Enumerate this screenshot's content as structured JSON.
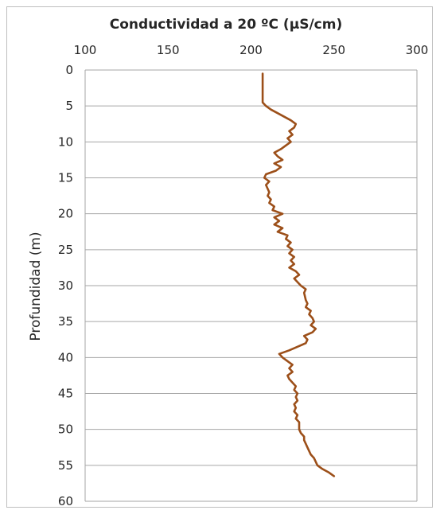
{
  "chart_data": {
    "type": "line",
    "title": "Conductividad  a  20 ºC (µS/cm)",
    "xlabel": "",
    "ylabel": "Profundidad (m)",
    "xlim": [
      100,
      300
    ],
    "ylim": [
      0,
      60
    ],
    "y_inverted": true,
    "x_axis_position": "top",
    "x_ticks": [
      "100",
      "150",
      "200",
      "250",
      "300"
    ],
    "y_ticks": [
      "0",
      "5",
      "10",
      "15",
      "20",
      "25",
      "30",
      "35",
      "40",
      "45",
      "50",
      "55",
      "60"
    ],
    "grid": "horizontal",
    "legend": "none",
    "colors": {
      "line": "#9C4F19",
      "grid": "#a6a6a6",
      "border": "#bfbfbf",
      "text": "#262626"
    },
    "series": [
      {
        "points": [
          [
            207,
            0.5
          ],
          [
            207,
            1.5
          ],
          [
            207,
            3
          ],
          [
            207,
            4.5
          ],
          [
            209,
            5
          ],
          [
            212,
            5.5
          ],
          [
            216,
            6
          ],
          [
            220,
            6.5
          ],
          [
            224,
            7
          ],
          [
            227,
            7.5
          ],
          [
            226,
            8
          ],
          [
            223,
            8.5
          ],
          [
            225,
            9
          ],
          [
            222,
            9.5
          ],
          [
            224,
            10
          ],
          [
            221,
            10.5
          ],
          [
            218,
            11
          ],
          [
            214,
            11.5
          ],
          [
            216,
            12
          ],
          [
            219,
            12.5
          ],
          [
            214,
            13
          ],
          [
            218,
            13.5
          ],
          [
            215,
            14
          ],
          [
            209,
            14.5
          ],
          [
            208,
            15
          ],
          [
            211,
            15.5
          ],
          [
            209,
            16
          ],
          [
            211,
            17
          ],
          [
            210,
            17.5
          ],
          [
            212,
            18
          ],
          [
            211,
            18.5
          ],
          [
            214,
            19
          ],
          [
            213,
            19.5
          ],
          [
            219,
            20
          ],
          [
            214,
            20.5
          ],
          [
            217,
            21
          ],
          [
            214,
            21.5
          ],
          [
            219,
            22
          ],
          [
            216,
            22.5
          ],
          [
            222,
            23
          ],
          [
            221,
            23.5
          ],
          [
            224,
            24
          ],
          [
            222,
            24.5
          ],
          [
            225,
            25
          ],
          [
            223,
            25.5
          ],
          [
            226,
            26
          ],
          [
            224,
            26.5
          ],
          [
            226,
            27
          ],
          [
            223,
            27.5
          ],
          [
            227,
            28
          ],
          [
            229,
            28.5
          ],
          [
            226,
            29
          ],
          [
            228,
            29.5
          ],
          [
            230,
            30
          ],
          [
            233,
            30.5
          ],
          [
            232,
            31
          ],
          [
            233,
            32
          ],
          [
            234,
            32.5
          ],
          [
            233,
            33
          ],
          [
            236,
            33.5
          ],
          [
            235,
            34
          ],
          [
            237,
            34.5
          ],
          [
            238,
            35
          ],
          [
            236,
            35.5
          ],
          [
            239,
            36
          ],
          [
            237,
            36.5
          ],
          [
            232,
            37
          ],
          [
            234,
            37.5
          ],
          [
            233,
            38
          ],
          [
            228,
            38.5
          ],
          [
            223,
            39
          ],
          [
            217,
            39.5
          ],
          [
            219,
            40
          ],
          [
            222,
            40.5
          ],
          [
            225,
            41
          ],
          [
            223,
            41.5
          ],
          [
            225,
            42
          ],
          [
            222,
            42.5
          ],
          [
            223,
            43
          ],
          [
            225,
            43.5
          ],
          [
            227,
            44
          ],
          [
            226,
            44.5
          ],
          [
            228,
            45
          ],
          [
            227,
            45.5
          ],
          [
            228,
            46
          ],
          [
            226,
            46.5
          ],
          [
            227,
            47
          ],
          [
            226,
            47.5
          ],
          [
            228,
            48
          ],
          [
            227,
            48.5
          ],
          [
            229,
            49
          ],
          [
            229,
            50
          ],
          [
            230,
            50.5
          ],
          [
            232,
            51
          ],
          [
            232,
            51.5
          ],
          [
            233,
            52
          ],
          [
            234,
            52.5
          ],
          [
            235,
            53
          ],
          [
            236,
            53.5
          ],
          [
            238,
            54
          ],
          [
            239,
            54.5
          ],
          [
            240,
            55
          ],
          [
            243,
            55.5
          ],
          [
            247,
            56
          ],
          [
            250,
            56.5
          ]
        ]
      }
    ]
  }
}
